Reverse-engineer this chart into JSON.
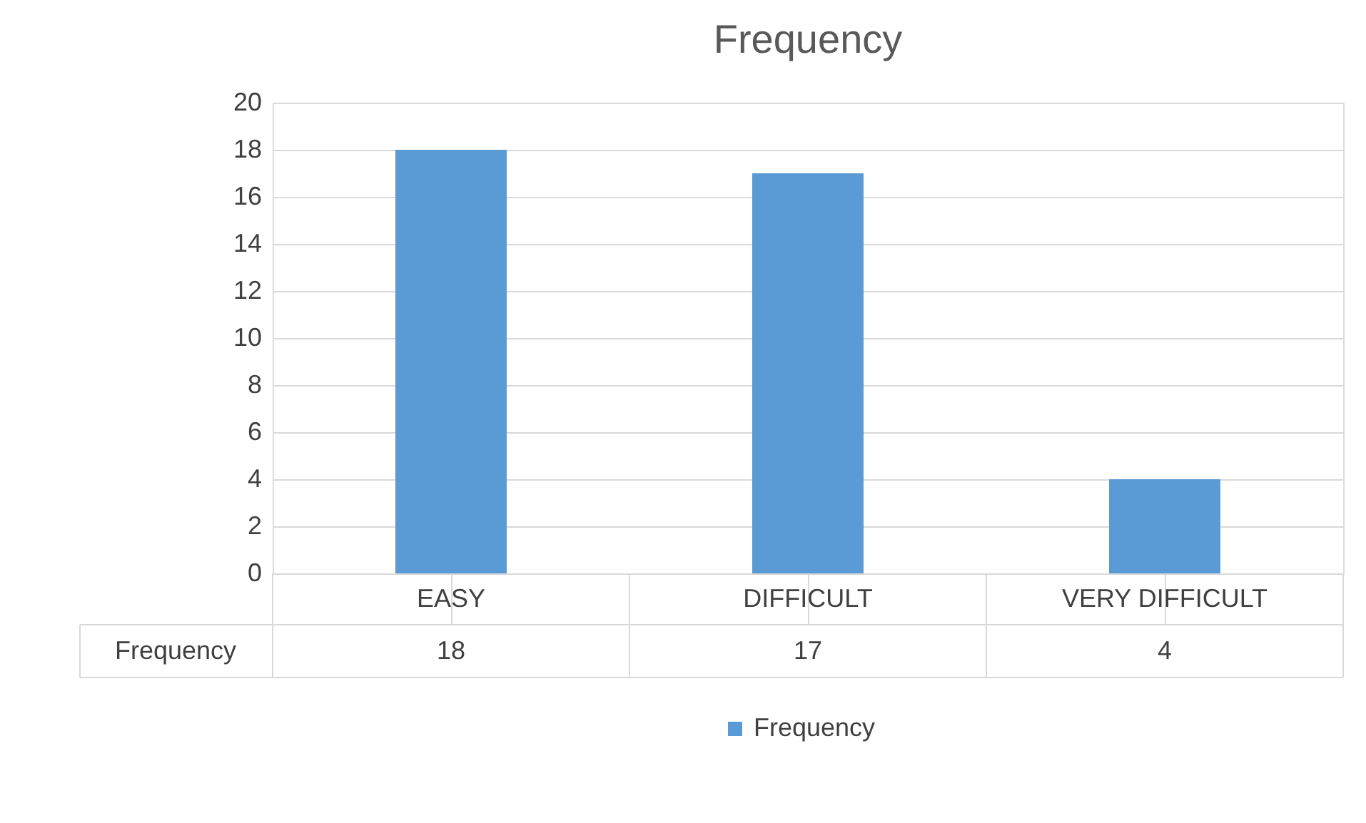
{
  "chart_data": {
    "type": "bar",
    "title": "Frequency",
    "categories": [
      "EASY",
      "DIFFICULT",
      "VERY DIFFICULT"
    ],
    "series": [
      {
        "name": "Frequency",
        "color": "#5b9bd5",
        "values": [
          18,
          17,
          4
        ]
      }
    ],
    "ylim": [
      0,
      20
    ],
    "yticks": [
      0,
      2,
      4,
      6,
      8,
      10,
      12,
      14,
      16,
      18,
      20
    ],
    "grid": "y",
    "legend": "bottom",
    "data_labels": true
  }
}
